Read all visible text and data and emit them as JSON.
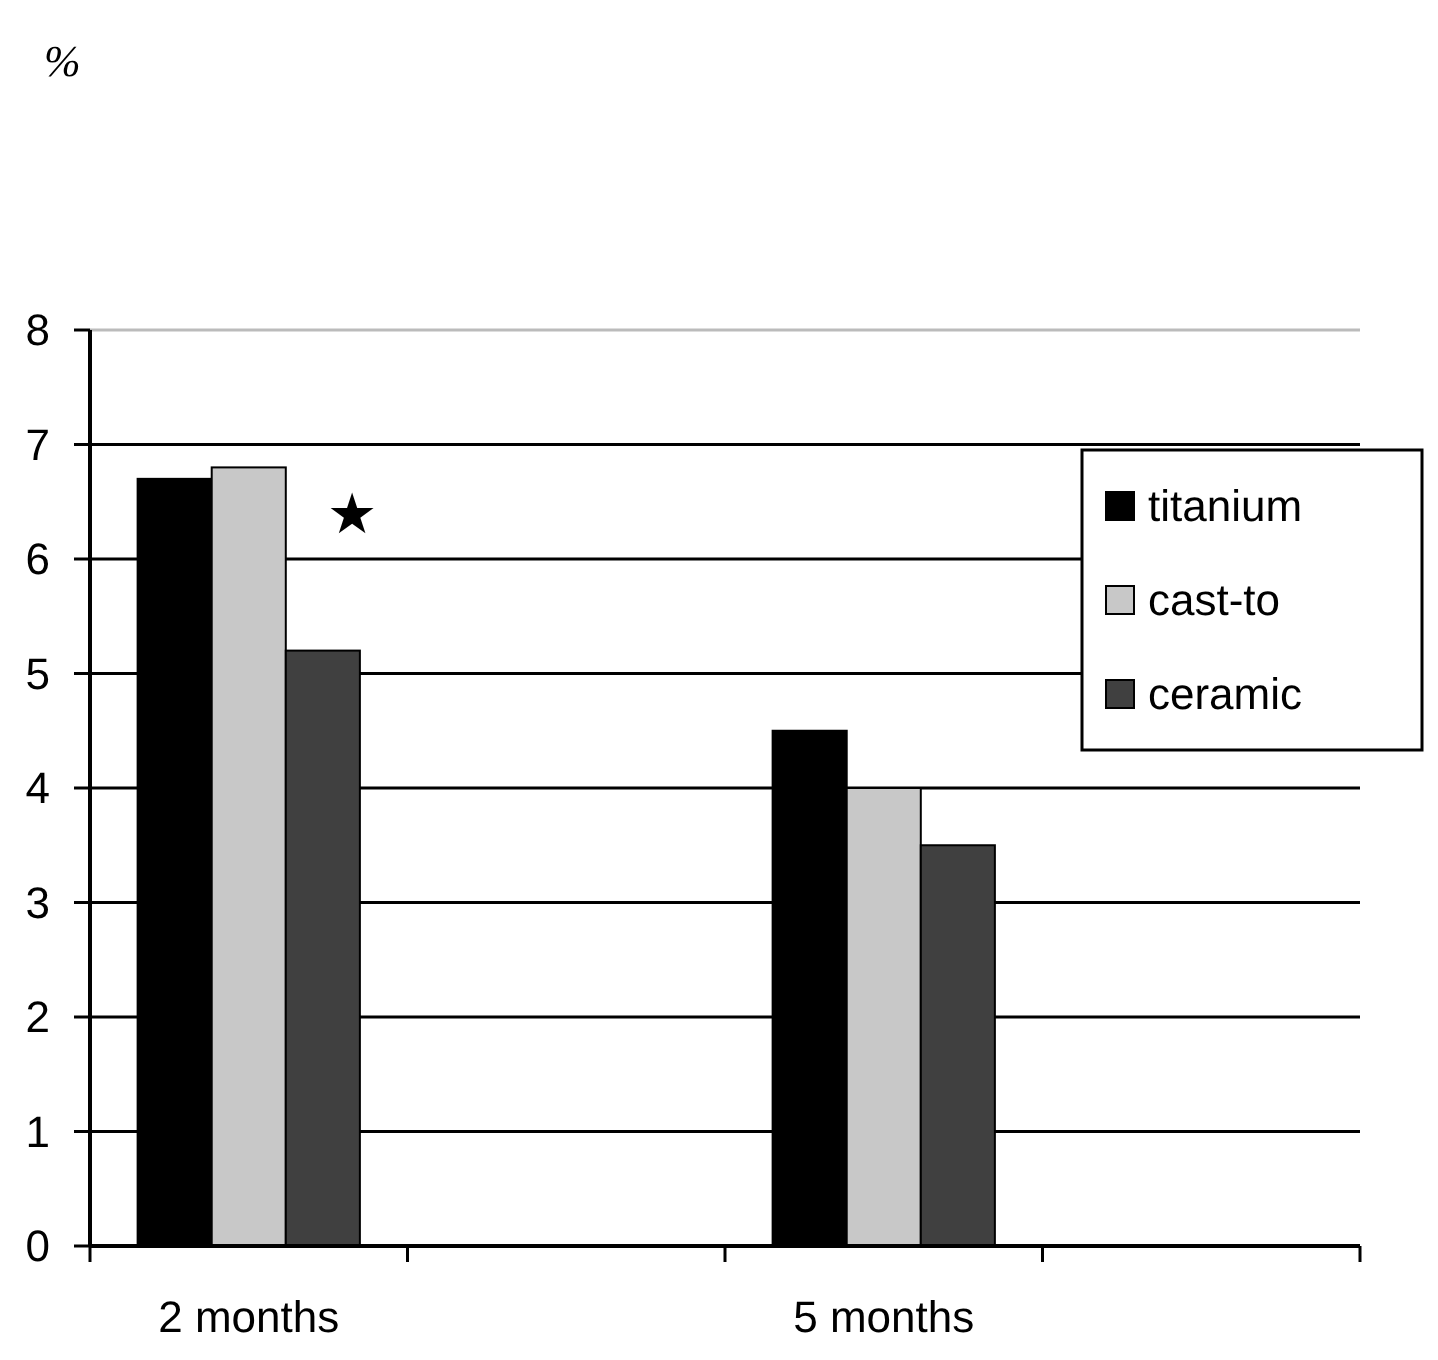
{
  "chart_data": {
    "type": "bar",
    "ylabel": "%",
    "categories": [
      "2 months",
      null,
      "5 months",
      null
    ],
    "series": [
      {
        "name": "titanium",
        "color": "#000000",
        "values": [
          6.7,
          null,
          4.5,
          null
        ]
      },
      {
        "name": "cast-to",
        "color": "#c8c8c8",
        "values": [
          6.8,
          null,
          4.0,
          null
        ]
      },
      {
        "name": "ceramic",
        "color": "#404040",
        "values": [
          5.2,
          null,
          3.5,
          null
        ]
      }
    ],
    "ylim": [
      0,
      8
    ],
    "yticks": [
      0,
      1,
      2,
      3,
      4,
      5,
      6,
      7,
      8
    ],
    "grid": "y",
    "legend": "right",
    "annotations": [
      "★"
    ]
  }
}
